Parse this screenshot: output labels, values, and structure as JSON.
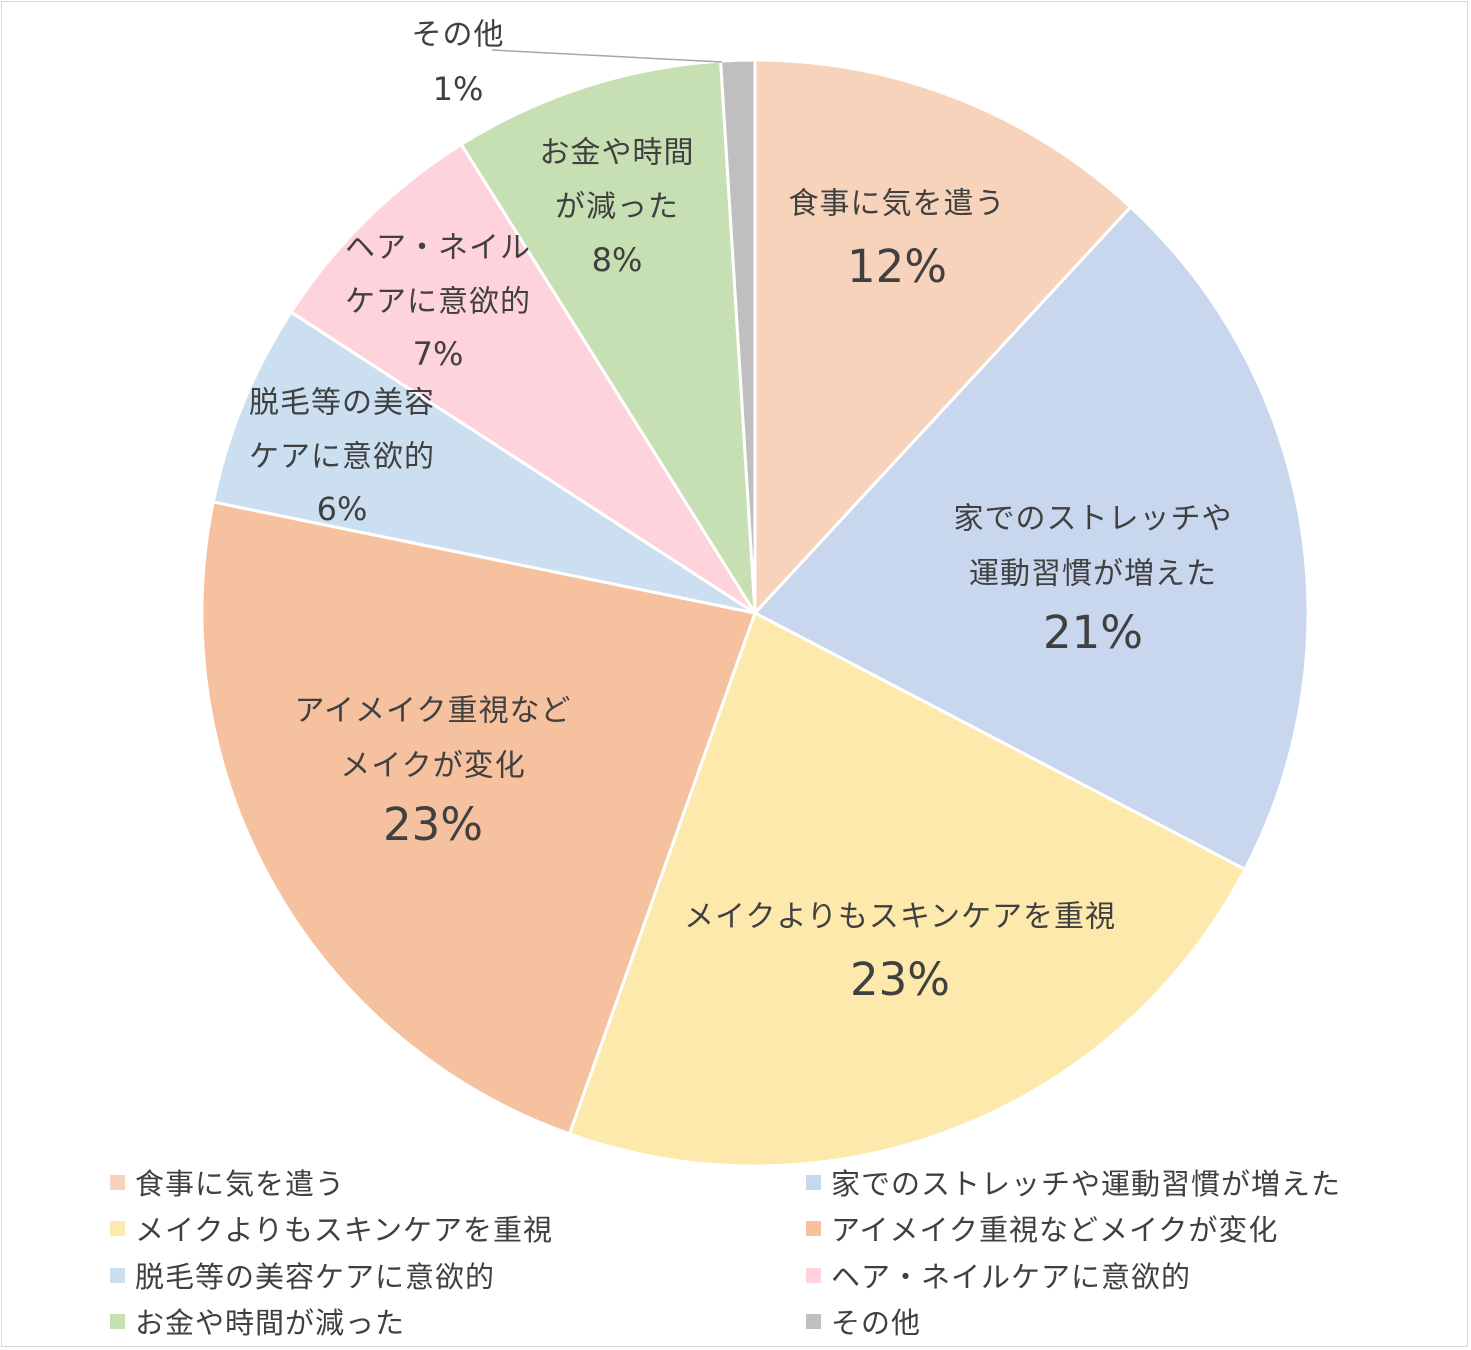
{
  "chart_data": {
    "type": "pie",
    "title": "",
    "legend_position": "bottom",
    "slices": [
      {
        "label": "食事に気を遣う",
        "label_lines": [
          "食事に気を遣う"
        ],
        "value": 12,
        "value_label": "12%",
        "color": "#F8D3BB"
      },
      {
        "label": "家でのストレッチや運動習慣が増えた",
        "label_lines": [
          "家でのストレッチや",
          "運動習慣が増えた"
        ],
        "value": 21,
        "value_label": "21%",
        "color": "#C9D7EE"
      },
      {
        "label": "メイクよりもスキンケアを重視",
        "label_lines": [
          "メイクよりもスキンケアを重視"
        ],
        "value": 23,
        "value_label": "23%",
        "color": "#FDE9AC"
      },
      {
        "label": "アイメイク重視などメイクが変化",
        "label_lines": [
          "アイメイク重視など",
          "メイクが変化"
        ],
        "value": 23,
        "value_label": "23%",
        "color": "#F6C19E"
      },
      {
        "label": "脱毛等の美容ケアに意欲的",
        "label_lines": [
          "脱毛等の美容",
          "ケアに意欲的"
        ],
        "value": 6,
        "value_label": "6%",
        "color": "#CBDFF1"
      },
      {
        "label": "ヘア・ネイルケアに意欲的",
        "label_lines": [
          "ヘア・ネイル",
          "ケアに意欲的"
        ],
        "value": 7,
        "value_label": "7%",
        "color": "#FED3DC"
      },
      {
        "label": "お金や時間が減った",
        "label_lines": [
          "お金や時間",
          "が減った"
        ],
        "value": 8,
        "value_label": "8%",
        "color": "#C6E0B4"
      },
      {
        "label": "その他",
        "label_lines": [
          "その他"
        ],
        "value": 1,
        "value_label": "1%",
        "color": "#BFBFBF"
      }
    ]
  }
}
